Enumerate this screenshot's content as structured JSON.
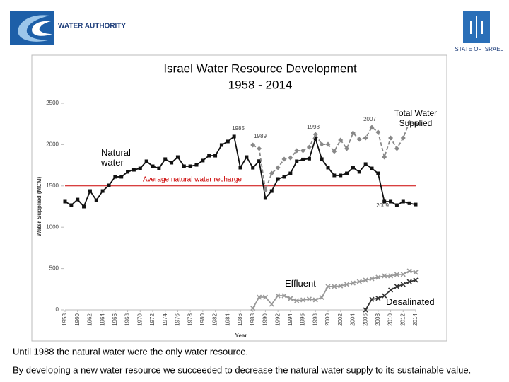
{
  "header": {
    "org": "WATER AUTHORITY",
    "state": "STATE OF ISRAEL"
  },
  "chart_data": {
    "type": "line",
    "title": "Israel Water Resource Development",
    "subtitle": "1958 - 2014",
    "x_label": "Year",
    "y_label": "Water Supplied (MCM)",
    "x": [
      1958,
      1959,
      1960,
      1961,
      1962,
      1963,
      1964,
      1965,
      1966,
      1967,
      1968,
      1969,
      1970,
      1971,
      1972,
      1973,
      1974,
      1975,
      1976,
      1977,
      1978,
      1979,
      1980,
      1981,
      1982,
      1983,
      1984,
      1985,
      1986,
      1987,
      1988,
      1989,
      1990,
      1991,
      1992,
      1993,
      1994,
      1995,
      1996,
      1997,
      1998,
      1999,
      2000,
      2001,
      2002,
      2003,
      2004,
      2005,
      2006,
      2007,
      2008,
      2009,
      2010,
      2011,
      2012,
      2013,
      2014
    ],
    "xlim": [
      1958,
      2014
    ],
    "xticks": [
      1958,
      1960,
      1962,
      1964,
      1966,
      1968,
      1970,
      1972,
      1974,
      1976,
      1978,
      1980,
      1982,
      1984,
      1986,
      1988,
      1990,
      1992,
      1994,
      1996,
      1998,
      2000,
      2002,
      2004,
      2006,
      2008,
      2010,
      2012,
      2014
    ],
    "ylim": [
      0,
      2500
    ],
    "yticks": [
      0,
      500,
      1000,
      1500,
      2000,
      2500
    ],
    "series": [
      {
        "name": "Natural water",
        "color": "#111111",
        "marker": "square",
        "dashed": false,
        "values": [
          1310,
          1267,
          1335,
          1250,
          1438,
          1327,
          1438,
          1507,
          1610,
          1610,
          1670,
          1695,
          1712,
          1798,
          1738,
          1712,
          1824,
          1781,
          1849,
          1738,
          1738,
          1755,
          1807,
          1866,
          1866,
          1995,
          2038,
          2098,
          1721,
          1849,
          1720,
          1800,
          1353,
          1438,
          1584,
          1610,
          1652,
          1798,
          1820,
          1830,
          2072,
          1824,
          1721,
          1627,
          1627,
          1652,
          1721,
          1670,
          1764,
          1712,
          1652,
          1310,
          1310,
          1267,
          1310,
          1290,
          1275
        ]
      },
      {
        "name": "Total Water Supplied",
        "color": "#888888",
        "marker": "diamond",
        "dashed": true,
        "values": [
          null,
          null,
          null,
          null,
          null,
          null,
          null,
          null,
          null,
          null,
          null,
          null,
          null,
          null,
          null,
          null,
          null,
          null,
          null,
          null,
          null,
          null,
          null,
          null,
          null,
          null,
          null,
          null,
          null,
          null,
          1995,
          1952,
          1450,
          1652,
          1721,
          1824,
          1840,
          1926,
          1926,
          1969,
          2123,
          2003,
          2003,
          1918,
          2055,
          1952,
          2140,
          2063,
          2080,
          2209,
          2150,
          1849,
          2080,
          1952,
          2080,
          2269,
          2250
        ]
      },
      {
        "name": "Effluent",
        "color": "#999999",
        "marker": "x",
        "dashed": false,
        "values": [
          null,
          null,
          null,
          null,
          null,
          null,
          null,
          null,
          null,
          null,
          null,
          null,
          null,
          null,
          null,
          null,
          null,
          null,
          null,
          null,
          null,
          null,
          null,
          null,
          null,
          null,
          null,
          null,
          null,
          null,
          20,
          154,
          154,
          68,
          171,
          171,
          137,
          111,
          120,
          130,
          120,
          150,
          283,
          283,
          290,
          308,
          325,
          342,
          360,
          377,
          394,
          411,
          411,
          428,
          430,
          471,
          454
        ]
      },
      {
        "name": "Desalinated",
        "color": "#333333",
        "marker": "x",
        "dashed": false,
        "values": [
          null,
          null,
          null,
          null,
          null,
          null,
          null,
          null,
          null,
          null,
          null,
          null,
          null,
          null,
          null,
          null,
          null,
          null,
          null,
          null,
          null,
          null,
          null,
          null,
          null,
          null,
          null,
          null,
          null,
          null,
          null,
          null,
          null,
          null,
          null,
          null,
          null,
          null,
          null,
          null,
          null,
          null,
          null,
          null,
          null,
          null,
          null,
          null,
          0,
          128,
          140,
          171,
          240,
          283,
          308,
          342,
          360
        ]
      }
    ],
    "reference_line": {
      "label": "Average natural water recharge",
      "value": 1500,
      "color": "#cc0000"
    },
    "annotations": [
      "1985",
      "1989",
      "1998",
      "2007",
      "2009"
    ]
  },
  "footer": [
    "Until 1988 the natural water  were the only water resource.",
    "By developing a new water resource we succeeded to decrease the natural water supply to its sustainable value."
  ]
}
